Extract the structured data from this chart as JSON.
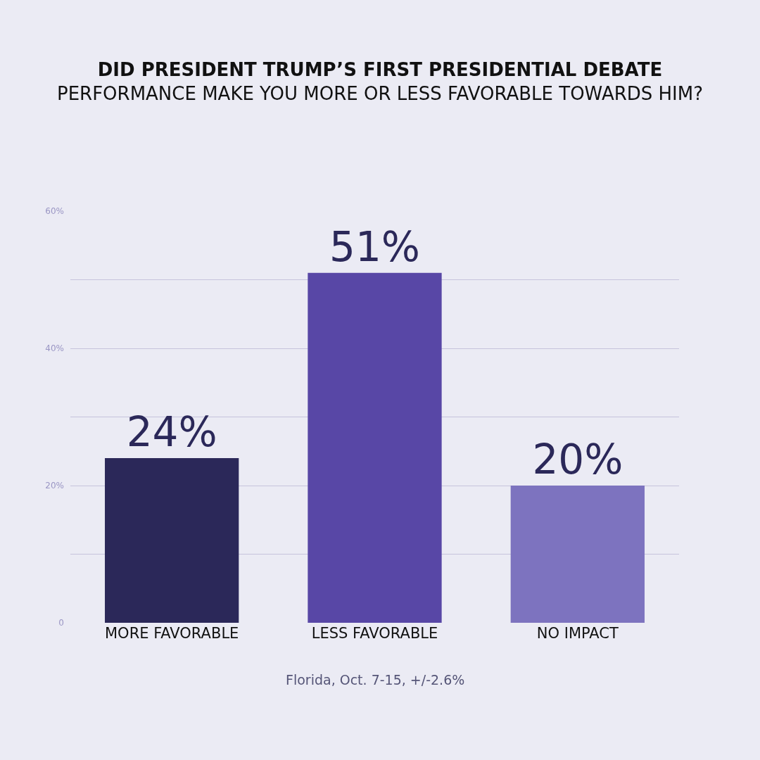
{
  "chart_data": {
    "type": "bar",
    "title": "DID PRESIDENT TRUMP’S FIRST PRESIDENTIAL DEBATE",
    "subtitle": "PERFORMANCE MAKE YOU MORE OR LESS FAVORABLE TOWARDS HIM?",
    "categories": [
      "MORE FAVORABLE",
      "LESS FAVORABLE",
      "NO IMPACT"
    ],
    "values": [
      24,
      51,
      20
    ],
    "colors": [
      "#2b2859",
      "#5847a6",
      "#7d73bf"
    ],
    "value_labels": [
      "24%",
      "51%",
      "20%"
    ],
    "ylim": [
      0,
      60
    ],
    "yticks": [
      0,
      {
        "value": 10,
        "label": null
      },
      {
        "value": 20,
        "label": "20%"
      },
      {
        "value": 30,
        "label": null
      },
      {
        "value": 40,
        "label": "40%"
      },
      {
        "value": 50,
        "label": null
      },
      {
        "value": 60,
        "label": "60%"
      }
    ],
    "grid": "y",
    "annotations": [
      "Florida, Oct. 7-15, +/-2.6%"
    ]
  }
}
